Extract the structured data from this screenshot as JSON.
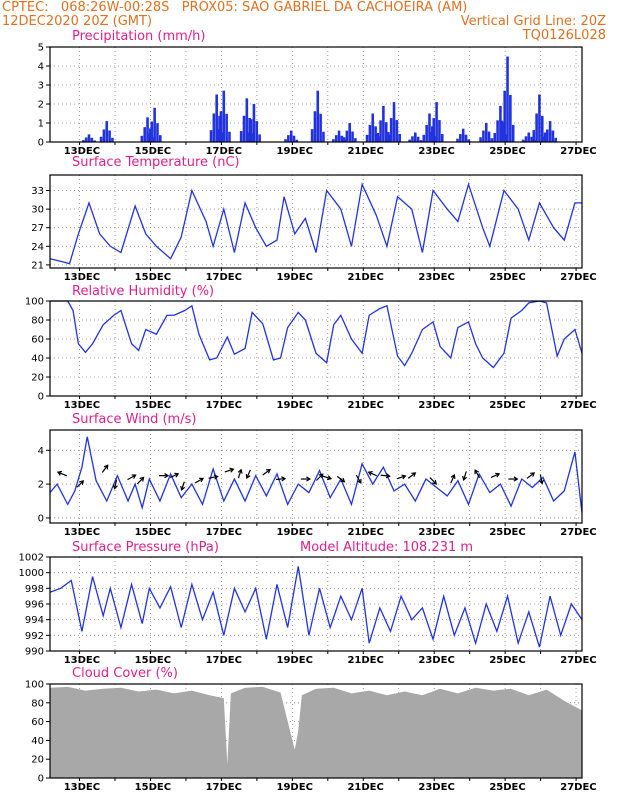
{
  "header": {
    "line1": "CPTEC:   068:26W-00:28S   PROX05: SAO GABRIEL DA CACHOEIRA (AM)",
    "line2_left": "12DEC2020 20Z (GMT)",
    "line2_right": "Vertical Grid Line: 20Z",
    "line3_right": "TQ0126L028"
  },
  "colors": {
    "header": "#e07020",
    "title": "#e0208a",
    "series": "#2233dd",
    "cloud": "#a8a8a8"
  },
  "x_axis_labels": [
    "13DEC",
    "15DEC",
    "17DEC",
    "19DEC",
    "21DEC",
    "23DEC",
    "25DEC",
    "27DEC"
  ],
  "panels": {
    "precip": {
      "title": "Precipitation (mm/h)",
      "yticks": [
        "0",
        "1",
        "2",
        "3",
        "4",
        "5"
      ]
    },
    "temp": {
      "title": "Surface Temperature (nC)",
      "yticks": [
        "21",
        "24",
        "27",
        "30",
        "33"
      ]
    },
    "rh": {
      "title": "Relative Humidity (%)",
      "yticks": [
        "0",
        "20",
        "40",
        "60",
        "80",
        "100"
      ]
    },
    "wind": {
      "title": "Surface Wind (m/s)",
      "yticks": [
        "0",
        "2",
        "4"
      ]
    },
    "pres": {
      "title": "Surface Pressure (hPa)",
      "subtitle": "Model Altitude: 108.231 m",
      "yticks": [
        "990",
        "992",
        "994",
        "996",
        "998",
        "1000",
        "1002"
      ]
    },
    "cloud": {
      "title": "Cloud Cover (%)",
      "yticks": [
        "0",
        "20",
        "40",
        "60",
        "80",
        "100"
      ]
    }
  },
  "chart_data": [
    {
      "type": "bar",
      "title": "Precipitation (mm/h)",
      "ylim": [
        0,
        5
      ],
      "x_range_days": [
        12.0,
        27.0
      ],
      "peaks": [
        {
          "day": 13.1,
          "value": 0.4
        },
        {
          "day": 13.6,
          "value": 1.1
        },
        {
          "day": 14.75,
          "value": 1.3
        },
        {
          "day": 14.95,
          "value": 1.8
        },
        {
          "day": 16.7,
          "value": 2.5
        },
        {
          "day": 16.9,
          "value": 2.7
        },
        {
          "day": 17.55,
          "value": 2.3
        },
        {
          "day": 17.75,
          "value": 2.0
        },
        {
          "day": 18.8,
          "value": 0.6
        },
        {
          "day": 19.55,
          "value": 2.7
        },
        {
          "day": 20.15,
          "value": 0.6
        },
        {
          "day": 20.45,
          "value": 1.0
        },
        {
          "day": 21.1,
          "value": 1.5
        },
        {
          "day": 21.4,
          "value": 1.9
        },
        {
          "day": 21.7,
          "value": 2.1
        },
        {
          "day": 22.3,
          "value": 0.5
        },
        {
          "day": 22.7,
          "value": 1.5
        },
        {
          "day": 22.9,
          "value": 2.1
        },
        {
          "day": 23.65,
          "value": 0.7
        },
        {
          "day": 24.3,
          "value": 1.0
        },
        {
          "day": 24.7,
          "value": 1.9
        },
        {
          "day": 24.9,
          "value": 4.5
        },
        {
          "day": 25.5,
          "value": 0.5
        },
        {
          "day": 25.8,
          "value": 2.5
        },
        {
          "day": 26.1,
          "value": 1.1
        }
      ]
    },
    {
      "type": "line",
      "title": "Surface Temperature (nC)",
      "ylim": [
        20.5,
        35.5
      ],
      "x": [
        12.0,
        12.35,
        12.55,
        12.8,
        13.1,
        13.4,
        13.7,
        14.0,
        14.4,
        14.7,
        15.0,
        15.4,
        15.7,
        16.0,
        16.4,
        16.6,
        16.9,
        17.2,
        17.5,
        17.8,
        18.1,
        18.4,
        18.6,
        18.9,
        19.2,
        19.5,
        19.8,
        20.2,
        20.5,
        20.8,
        21.2,
        21.5,
        21.8,
        22.2,
        22.5,
        22.8,
        23.2,
        23.5,
        23.8,
        24.2,
        24.4,
        24.8,
        25.2,
        25.5,
        25.8,
        26.2,
        26.5,
        26.8,
        27.0
      ],
      "y": [
        22,
        21.5,
        21.2,
        26,
        31,
        26,
        24,
        23,
        30.5,
        26,
        24,
        22,
        25.5,
        33,
        28,
        24,
        30,
        23,
        31,
        27,
        24,
        25,
        32,
        26,
        28.5,
        23,
        33,
        30,
        24,
        34,
        29,
        24,
        32,
        30,
        23,
        33,
        30,
        28,
        34,
        27,
        24,
        33,
        30,
        25,
        31,
        27,
        25,
        31,
        31
      ]
    },
    {
      "type": "line",
      "title": "Relative Humidity (%)",
      "ylim": [
        0,
        100
      ],
      "x": [
        12.0,
        12.3,
        12.5,
        12.65,
        12.8,
        13.0,
        13.2,
        13.5,
        13.8,
        14.0,
        14.3,
        14.5,
        14.7,
        15.0,
        15.3,
        15.5,
        15.8,
        16.0,
        16.2,
        16.5,
        16.7,
        17.0,
        17.2,
        17.5,
        17.7,
        18.0,
        18.3,
        18.5,
        18.7,
        19.0,
        19.2,
        19.5,
        19.8,
        20.0,
        20.2,
        20.5,
        20.8,
        21.0,
        21.3,
        21.5,
        21.8,
        22.0,
        22.2,
        22.5,
        22.8,
        23.0,
        23.3,
        23.5,
        23.8,
        24.0,
        24.2,
        24.5,
        24.8,
        25.0,
        25.3,
        25.5,
        25.8,
        26.0,
        26.3,
        26.5,
        26.8,
        27.0
      ],
      "y": [
        100,
        100,
        100,
        90,
        55,
        46,
        55,
        75,
        85,
        90,
        55,
        48,
        70,
        65,
        85,
        85,
        90,
        95,
        65,
        38,
        40,
        62,
        44,
        50,
        88,
        76,
        38,
        40,
        72,
        88,
        80,
        45,
        35,
        75,
        85,
        60,
        45,
        85,
        92,
        95,
        42,
        32,
        45,
        70,
        78,
        52,
        40,
        72,
        78,
        55,
        40,
        30,
        45,
        82,
        90,
        98,
        100,
        98,
        42,
        60,
        70,
        45
      ]
    },
    {
      "type": "line",
      "title": "Surface Wind (m/s)",
      "ylim": [
        -0.3,
        5.2
      ],
      "x": [
        12.0,
        12.2,
        12.5,
        12.7,
        12.9,
        13.05,
        13.3,
        13.6,
        13.9,
        14.2,
        14.4,
        14.6,
        14.8,
        15.1,
        15.4,
        15.7,
        16.0,
        16.3,
        16.6,
        16.9,
        17.2,
        17.5,
        17.8,
        18.1,
        18.4,
        18.7,
        19.0,
        19.3,
        19.6,
        19.9,
        20.2,
        20.5,
        20.8,
        21.1,
        21.4,
        21.7,
        22.0,
        22.3,
        22.6,
        22.9,
        23.2,
        23.5,
        23.8,
        24.1,
        24.4,
        24.7,
        25.0,
        25.3,
        25.6,
        25.9,
        26.2,
        26.5,
        26.8,
        27.0
      ],
      "y": [
        1.5,
        2.0,
        0.8,
        1.6,
        3.0,
        4.8,
        2.2,
        1.0,
        2.5,
        1.0,
        2.0,
        0.6,
        2.3,
        1.0,
        2.6,
        1.2,
        2.0,
        0.8,
        2.9,
        1.0,
        2.3,
        1.0,
        2.5,
        1.3,
        2.6,
        0.8,
        2.0,
        1.5,
        2.8,
        1.2,
        2.3,
        0.8,
        3.2,
        2.0,
        3.0,
        1.6,
        2.0,
        1.0,
        2.3,
        1.8,
        1.3,
        2.2,
        0.8,
        2.6,
        1.5,
        2.0,
        0.7,
        2.3,
        1.8,
        2.4,
        1.0,
        1.6,
        3.9,
        0.3
      ]
    },
    {
      "type": "line",
      "title": "Surface Pressure (hPa)",
      "ylim": [
        990,
        1002
      ],
      "x": [
        12.0,
        12.3,
        12.6,
        12.9,
        13.2,
        13.5,
        13.7,
        14.0,
        14.3,
        14.6,
        14.8,
        15.1,
        15.4,
        15.7,
        16.0,
        16.3,
        16.6,
        16.9,
        17.2,
        17.5,
        17.8,
        18.1,
        18.4,
        18.7,
        19.0,
        19.3,
        19.6,
        19.9,
        20.2,
        20.5,
        20.8,
        21.0,
        21.3,
        21.6,
        21.9,
        22.2,
        22.5,
        22.8,
        23.1,
        23.4,
        23.7,
        24.0,
        24.3,
        24.6,
        24.9,
        25.2,
        25.5,
        25.8,
        26.1,
        26.4,
        26.7,
        27.0
      ],
      "y": [
        997.5,
        998,
        999,
        992.5,
        999.5,
        994.5,
        998,
        993,
        998.5,
        993.5,
        998,
        995.5,
        998.2,
        993,
        998.5,
        994,
        997.5,
        992,
        998,
        995,
        998,
        991.5,
        998.5,
        993,
        1000.8,
        992,
        998,
        993,
        997,
        994,
        998,
        991,
        995.5,
        992.5,
        997,
        994,
        995.5,
        991.5,
        997,
        992,
        995.5,
        991,
        996,
        992.5,
        997,
        991,
        995,
        990.5,
        997,
        992,
        996,
        994
      ]
    },
    {
      "type": "area",
      "title": "Cloud Cover (%)",
      "ylim": [
        0,
        100
      ],
      "x": [
        12.0,
        12.5,
        13.0,
        13.5,
        14.0,
        14.5,
        15.0,
        15.5,
        16.0,
        16.5,
        16.9,
        17.0,
        17.1,
        17.5,
        18.0,
        18.5,
        18.9,
        19.0,
        19.1,
        19.5,
        20.0,
        20.5,
        21.0,
        21.5,
        22.0,
        22.5,
        23.0,
        23.5,
        24.0,
        24.5,
        25.0,
        25.5,
        26.0,
        26.5,
        27.0
      ],
      "y": [
        96,
        97,
        93,
        95,
        96,
        92,
        94,
        90,
        93,
        88,
        85,
        15,
        90,
        96,
        97,
        91,
        30,
        50,
        88,
        95,
        96,
        90,
        93,
        88,
        92,
        88,
        95,
        90,
        96,
        93,
        95,
        88,
        94,
        82,
        72
      ]
    }
  ]
}
